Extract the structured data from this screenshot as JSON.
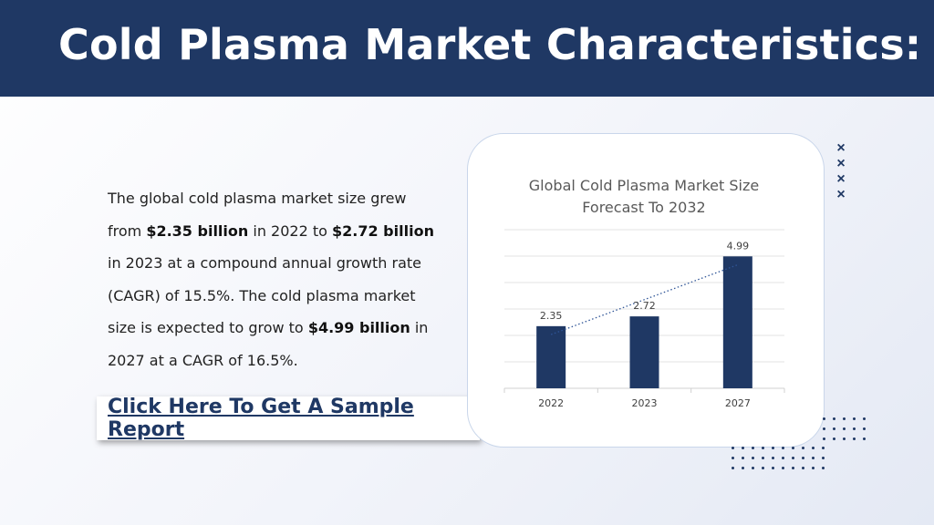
{
  "header": {
    "title": "Cold Plasma Market Characteristics:"
  },
  "body": {
    "t1": "The global cold plasma market size grew from ",
    "b1": "$2.35 billion",
    "t2": " in 2022 to ",
    "b2": "$2.72 billion",
    "t3": " in 2023 at a compound annual growth rate (CAGR) of 15.5%. The cold plasma market size is expected to grow to ",
    "b3": "$4.99 billion",
    "t4": " in 2027 at a CAGR of 16.5%."
  },
  "cta": {
    "label": "Click Here To Get A Sample Report"
  },
  "decor": {
    "x_glyph": "×"
  },
  "colors": {
    "navy": "#1f3864",
    "bar": "#1f3864",
    "grid": "#e3e3e3"
  },
  "chart_data": {
    "type": "bar",
    "title": "Global Cold Plasma Market Size Forecast To 2032",
    "title_lines": [
      "Global Cold Plasma Market Size",
      "Forecast To 2032"
    ],
    "categories": [
      "2022",
      "2023",
      "2027"
    ],
    "values": [
      2.35,
      2.72,
      4.99
    ],
    "data_labels": [
      "2.35",
      "2.72",
      "4.99"
    ],
    "trendline": "linear-dotted",
    "ylim": [
      0,
      6
    ],
    "grid": true,
    "legend": "none"
  }
}
